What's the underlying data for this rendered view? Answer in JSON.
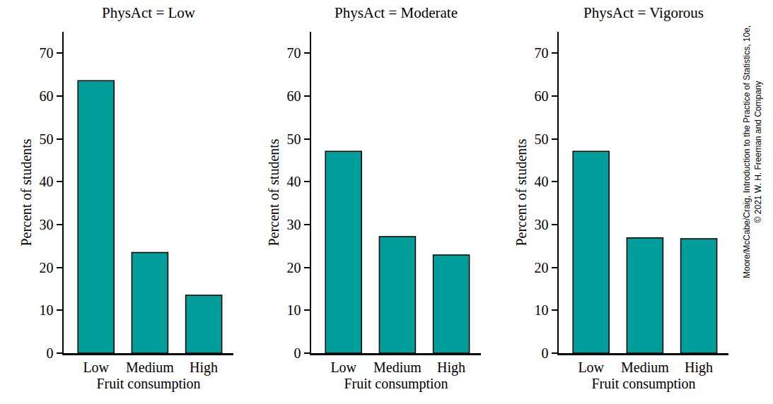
{
  "chart_data": [
    {
      "type": "bar",
      "title": "PhysAct = Low",
      "x_label": "Fruit consumption",
      "y_label": "Percent of students",
      "categories": [
        "Low",
        "Medium",
        "High"
      ],
      "values": [
        63.6,
        23.5,
        13.5
      ],
      "color": "#009e9a",
      "ylim": [
        0,
        75
      ],
      "yticks": [
        0,
        10,
        20,
        30,
        40,
        50,
        60,
        70
      ],
      "grid": false
    },
    {
      "type": "bar",
      "title": "PhysAct = Moderate",
      "x_label": "Fruit consumption",
      "y_label": "Percent of students",
      "categories": [
        "Low",
        "Medium",
        "High"
      ],
      "values": [
        47.1,
        27.2,
        22.9
      ],
      "color": "#009e9a",
      "ylim": [
        0,
        75
      ],
      "yticks": [
        0,
        10,
        20,
        30,
        40,
        50,
        60,
        70
      ],
      "grid": false
    },
    {
      "type": "bar",
      "title": "PhysAct = Vigorous",
      "x_label": "Fruit consumption",
      "y_label": "Percent of students",
      "categories": [
        "Low",
        "Medium",
        "High"
      ],
      "values": [
        47.1,
        26.9,
        26.7
      ],
      "color": "#009e9a",
      "ylim": [
        0,
        75
      ],
      "yticks": [
        0,
        10,
        20,
        30,
        40,
        50,
        60,
        70
      ],
      "grid": false
    }
  ],
  "credit": [
    "Moore/McCabe/Craig, Introduction to the Practice of Statistics, 10e,",
    "© 2021 W. H. Freeman and Company"
  ]
}
